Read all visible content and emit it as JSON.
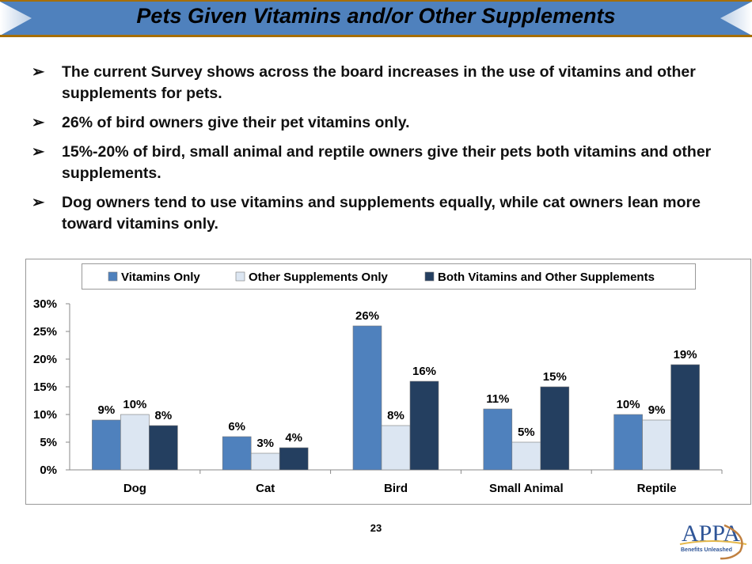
{
  "header": {
    "title": "Pets Given Vitamins and/or Other Supplements",
    "band_color": "#4F81BD",
    "border_color": "#A66E00"
  },
  "bullets": [
    "The current Survey shows across the board increases in the use of vitamins and other supplements for pets.",
    "26% of bird owners give their pet vitamins only.",
    "15%-20% of bird, small animal and reptile owners give their pets both vitamins and other supplements.",
    "Dog owners tend to use vitamins and supplements equally, while cat owners lean more toward vitamins only."
  ],
  "bullet_icon": "arrowhead-bullet",
  "chart_data": {
    "type": "bar",
    "categories": [
      "Dog",
      "Cat",
      "Bird",
      "Small Animal",
      "Reptile"
    ],
    "series": [
      {
        "name": "Vitamins Only",
        "values": [
          9,
          6,
          26,
          11,
          10
        ],
        "color": "#4F81BD"
      },
      {
        "name": "Other Supplements Only",
        "values": [
          10,
          3,
          8,
          5,
          9
        ],
        "color": "#DCE6F2"
      },
      {
        "name": "Both Vitamins and Other Supplements",
        "values": [
          8,
          4,
          16,
          15,
          19
        ],
        "color": "#243F60"
      }
    ],
    "yticks": [
      "0%",
      "5%",
      "10%",
      "15%",
      "20%",
      "25%",
      "30%"
    ],
    "ylim": [
      0,
      30
    ],
    "legend": "top",
    "grid": false,
    "data_labels": true
  },
  "footer": {
    "page_number": "23",
    "logo_text": "APPA",
    "logo_tagline": "Benefits Unleashed"
  }
}
